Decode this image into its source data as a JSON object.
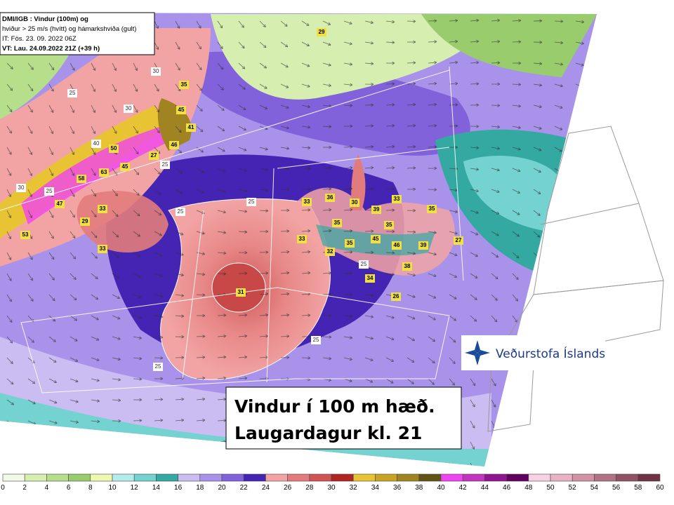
{
  "header": {
    "lines": [
      "DMI/IGB : Vindur (100m) og",
      "hviður > 25 m/s (hvítt) og hámarkshviða (gult)",
      "IT: Fös. 23. 09. 2022 06Z",
      "VT: Lau. 24.09.2022 21Z (+39 h)"
    ]
  },
  "caption": {
    "lines": [
      "Vindur í 100 m hæð.",
      "Laugardagur kl. 21"
    ]
  },
  "logo": {
    "text": "Veðurstofa Íslands"
  },
  "map": {
    "gust_labels": [
      29,
      35,
      45,
      41,
      46,
      50,
      63,
      58,
      33,
      29,
      33,
      53,
      47,
      27,
      45,
      31,
      33,
      36,
      30,
      39,
      33,
      35,
      35,
      35,
      32,
      45,
      46,
      39,
      27,
      38,
      34,
      26,
      33,
      35
    ],
    "contour_labels": [
      30,
      25,
      30,
      40,
      25,
      25,
      30,
      25,
      25,
      25,
      25,
      25
    ]
  },
  "colorbar": {
    "labels": [
      0,
      2,
      4,
      6,
      8,
      10,
      12,
      14,
      16,
      18,
      20,
      22,
      24,
      26,
      28,
      30,
      32,
      34,
      36,
      38,
      40,
      42,
      44,
      46,
      48,
      50,
      52,
      54,
      56,
      58,
      60
    ],
    "colors": [
      "#f2f9e6",
      "#d6eeb0",
      "#b6df8c",
      "#98cc6c",
      "#eef8b0",
      "#b2ecec",
      "#74d2d0",
      "#34a9a2",
      "#cbbcf2",
      "#a993ea",
      "#8262da",
      "#4424b2",
      "#f2a4a4",
      "#e27c7c",
      "#d05454",
      "#b02424",
      "#e8c434",
      "#c8a424",
      "#a08422",
      "#625214",
      "#f044f0",
      "#c034c0",
      "#901490",
      "#600060",
      "#f8d2e2",
      "#e8b2c4",
      "#d092a4",
      "#b07284",
      "#905264",
      "#703244"
    ]
  }
}
